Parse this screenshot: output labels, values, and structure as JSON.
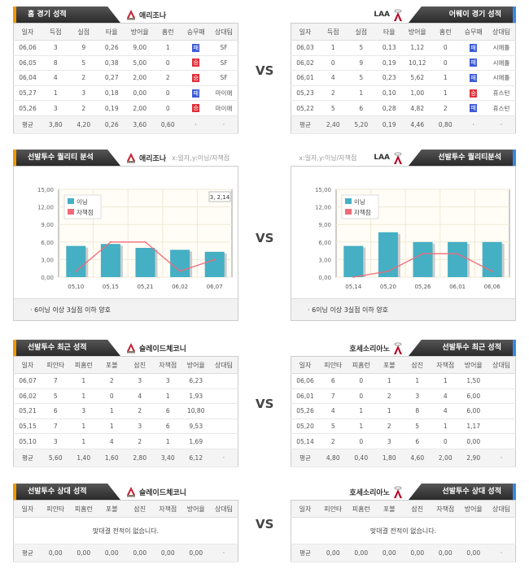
{
  "vs_label": "VS",
  "home_team": "애리조나",
  "away_team": "LAA",
  "colors": {
    "win": "#e0303a",
    "lose": "#3d5bd6",
    "bar": "#45afc4",
    "line": "#f06b78",
    "home_accent": "#f39800",
    "away_accent": "#3a86e0"
  },
  "home_games": {
    "title": "홈 경기 성적",
    "headers": [
      "일자",
      "득점",
      "실점",
      "타율",
      "방어율",
      "홈런",
      "승무패",
      "상대팀"
    ],
    "rows": [
      [
        "06,06",
        "3",
        "9",
        "0,26",
        "9,00",
        "1",
        "패",
        "SF"
      ],
      [
        "06,05",
        "8",
        "5",
        "0,38",
        "5,00",
        "0",
        "승",
        "SF"
      ],
      [
        "06,04",
        "4",
        "2",
        "0,27",
        "2,00",
        "2",
        "승",
        "SF"
      ],
      [
        "05,27",
        "1",
        "3",
        "0,18",
        "0,00",
        "0",
        "패",
        "마이애"
      ],
      [
        "05,26",
        "3",
        "2",
        "0,19",
        "2,00",
        "0",
        "승",
        "마이애"
      ]
    ],
    "avg": [
      "평균",
      "3,80",
      "4,20",
      "0,26",
      "3,60",
      "0,60",
      "·",
      "·"
    ]
  },
  "away_games": {
    "title": "어웨이 경기 성적",
    "headers": [
      "일자",
      "득점",
      "실점",
      "타율",
      "방어율",
      "홈런",
      "승무패",
      "상대팀"
    ],
    "rows": [
      [
        "06,03",
        "1",
        "5",
        "0,13",
        "1,12",
        "0",
        "패",
        "시애틀"
      ],
      [
        "06,02",
        "0",
        "9",
        "0,19",
        "10,12",
        "0",
        "패",
        "시애틀"
      ],
      [
        "06,01",
        "4",
        "5",
        "0,23",
        "5,62",
        "1",
        "패",
        "시애틀"
      ],
      [
        "05,23",
        "2",
        "1",
        "0,10",
        "1,00",
        "1",
        "승",
        "휴스턴"
      ],
      [
        "05,22",
        "5",
        "6",
        "0,28",
        "4,82",
        "2",
        "패",
        "휴스턴"
      ]
    ],
    "avg": [
      "평균",
      "2,40",
      "5,20",
      "0,19",
      "4,46",
      "0,80",
      "·",
      "·"
    ]
  },
  "quality_left": {
    "title": "선발투수 퀄리티 분석",
    "team": "애리조나",
    "axis_note": "x:일자,y:이닝/자책점",
    "footnote": "6이닝 이상 3실점 이하 양호",
    "tooltip": "3, 2,14"
  },
  "quality_right": {
    "title": "선발투수 퀄리티분석",
    "team": "LAA",
    "axis_note": "x:일자,y:이닝/자책점",
    "footnote": "6이닝 이상 3실점 이하 양호"
  },
  "chart_data": [
    {
      "type": "bar",
      "categories": [
        "05,10",
        "05,15",
        "05,21",
        "06,02",
        "06,07"
      ],
      "ylim": [
        0,
        15
      ],
      "yticks": [
        "0,00",
        "3,00",
        "6,00",
        "9,00",
        "12,00",
        "15,00"
      ],
      "legend": "top-left",
      "grid": true,
      "series": [
        {
          "name": "이닝",
          "type": "bar",
          "values": [
            5.33,
            5.67,
            5.0,
            4.67,
            4.33
          ]
        },
        {
          "name": "자책점",
          "type": "line",
          "values": [
            1,
            6,
            6,
            1,
            3
          ]
        }
      ]
    },
    {
      "type": "bar",
      "categories": [
        "05,14",
        "05,20",
        "05,26",
        "06,01",
        "06,06"
      ],
      "ylim": [
        0,
        15
      ],
      "yticks": [
        "0,00",
        "3,00",
        "6,00",
        "9,00",
        "12,00",
        "15,00"
      ],
      "legend": "top-left",
      "grid": true,
      "series": [
        {
          "name": "이닝",
          "type": "bar",
          "values": [
            5.33,
            7.67,
            6,
            6,
            6
          ]
        },
        {
          "name": "자책점",
          "type": "line",
          "values": [
            0,
            1,
            4,
            4,
            1
          ]
        }
      ]
    }
  ],
  "pitcher_recent_left": {
    "title": "선발투수 최근 성적",
    "pitcher": "슬레이드체코니",
    "headers": [
      "일자",
      "피안타",
      "피홈런",
      "포볼",
      "삼진",
      "자책점",
      "방어율",
      "상대팀"
    ],
    "rows": [
      [
        "06,07",
        "7",
        "1",
        "2",
        "3",
        "3",
        "6,23",
        ""
      ],
      [
        "06,02",
        "5",
        "1",
        "0",
        "4",
        "1",
        "1,93",
        ""
      ],
      [
        "05,21",
        "6",
        "3",
        "1",
        "2",
        "6",
        "10,80",
        ""
      ],
      [
        "05,15",
        "7",
        "1",
        "1",
        "3",
        "6",
        "9,53",
        ""
      ],
      [
        "05,10",
        "3",
        "1",
        "4",
        "2",
        "1",
        "1,69",
        ""
      ]
    ],
    "avg": [
      "평균",
      "5,60",
      "1,40",
      "1,60",
      "2,80",
      "3,40",
      "6,12",
      "·"
    ]
  },
  "pitcher_recent_right": {
    "title": "선발투수 최근 성적",
    "pitcher": "호세소리아노",
    "headers": [
      "일자",
      "피안타",
      "피홈런",
      "포볼",
      "삼진",
      "자책점",
      "방어율",
      "상대팀"
    ],
    "rows": [
      [
        "06,06",
        "6",
        "0",
        "1",
        "1",
        "1",
        "1,50",
        ""
      ],
      [
        "06,01",
        "7",
        "0",
        "2",
        "3",
        "4",
        "6,00",
        ""
      ],
      [
        "05,26",
        "4",
        "1",
        "1",
        "8",
        "4",
        "6,00",
        ""
      ],
      [
        "05,20",
        "5",
        "1",
        "2",
        "5",
        "1",
        "1,17",
        ""
      ],
      [
        "05,14",
        "2",
        "0",
        "3",
        "6",
        "0",
        "0,00",
        ""
      ]
    ],
    "avg": [
      "평균",
      "4,80",
      "0,40",
      "1,80",
      "4,60",
      "2,00",
      "2,90",
      "·"
    ]
  },
  "pitcher_vs_left": {
    "title": "선발투수 상대 성적",
    "pitcher": "슬레이드체코니",
    "headers": [
      "일자",
      "피안타",
      "피홈런",
      "포볼",
      "삼진",
      "자책점",
      "방어율",
      "상대팀"
    ],
    "empty": "맞대결 전적이 없습니다.",
    "avg": [
      "평균",
      "0,00",
      "0,00",
      "0,00",
      "0,00",
      "0,00",
      "0,00",
      "·"
    ]
  },
  "pitcher_vs_right": {
    "title": "선발투수 상대 성적",
    "pitcher": "호세소리아노",
    "headers": [
      "일자",
      "피안타",
      "피홈런",
      "포볼",
      "삼진",
      "자책점",
      "방어율",
      "상대팀"
    ],
    "empty": "맞대결 전적이 없습니다.",
    "avg": [
      "평균",
      "0,00",
      "0,00",
      "0,00",
      "0,00",
      "0,00",
      "0,00",
      "·"
    ]
  }
}
